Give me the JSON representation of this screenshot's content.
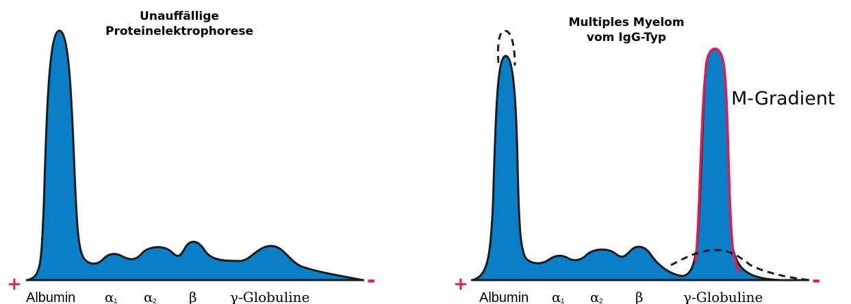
{
  "colors": {
    "fill": "#0a7fc8",
    "outline": "#1a1a1a",
    "m_gradient_outline": "#e8194f",
    "polarity": "#e8194f"
  },
  "left_panel": {
    "title_line1": "Unauffällige",
    "title_line2": "Proteinelektrophorese",
    "plus": "+",
    "minus": "-",
    "labels": {
      "albumin": "Albumin",
      "alpha": "α",
      "alpha1_sub": "1",
      "alpha2_sub": "2",
      "beta": "β",
      "gamma": "γ-Globuline"
    }
  },
  "right_panel": {
    "title_line1": "Multiples Myelom",
    "title_line2": "vom IgG-Typ",
    "annotation": "M-Gradient",
    "plus": "+",
    "minus": "-",
    "labels": {
      "albumin": "Albumin",
      "alpha": "α",
      "alpha1_sub": "1",
      "alpha2_sub": "2",
      "beta": "β",
      "gamma": "γ-Globuline"
    }
  }
}
